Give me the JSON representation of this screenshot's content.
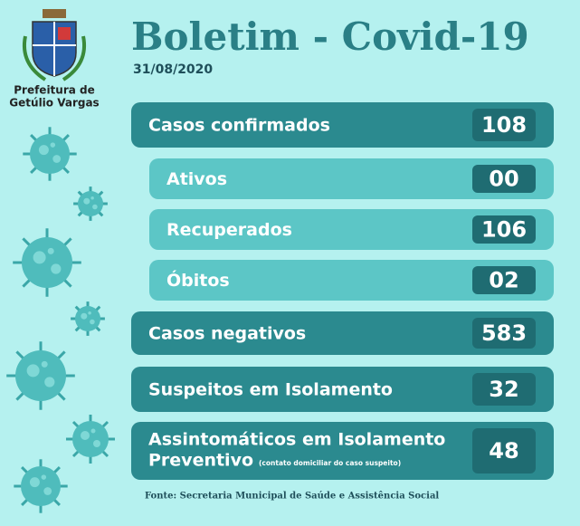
{
  "header": {
    "municipality_line1": "Prefeitura de",
    "municipality_line2": "Getúlio Vargas",
    "title": "Boletim - Covid-19",
    "date": "31/08/2020"
  },
  "rows": [
    {
      "label": "Casos confirmados",
      "value": "108"
    },
    {
      "label": "Ativos",
      "value": "00"
    },
    {
      "label": "Recuperados",
      "value": "106"
    },
    {
      "label": "Óbitos",
      "value": "02"
    },
    {
      "label": "Casos negativos",
      "value": "583"
    },
    {
      "label": "Suspeitos em Isolamento",
      "value": "32"
    },
    {
      "label": "Assintomáticos em Isolamento",
      "label_line2": "Preventivo",
      "note": "(contato domiciliar do caso suspeito)",
      "value": "48"
    }
  ],
  "footer": {
    "source": "Fonte: Secretaria Municipal de Saúde e Assistência Social"
  }
}
